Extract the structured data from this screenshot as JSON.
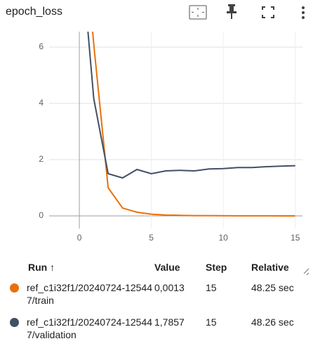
{
  "header": {
    "title": "epoch_loss"
  },
  "chart_data": {
    "type": "line",
    "x": [
      0,
      1,
      2,
      3,
      4,
      5,
      6,
      7,
      8,
      9,
      10,
      11,
      12,
      13,
      14,
      15
    ],
    "series": [
      {
        "name": "ref_c1i32f1/20240724-125447/train",
        "color": "#e8710a",
        "values": [
          12,
          6.1,
          1.0,
          0.28,
          0.13,
          0.06,
          0.03,
          0.02,
          0.01,
          0.008,
          0.006,
          0.004,
          0.003,
          0.002,
          0.0015,
          0.0013
        ]
      },
      {
        "name": "ref_c1i32f1/20240724-125447/validation",
        "color": "#425066",
        "values": [
          10.1,
          4.17,
          1.5,
          1.35,
          1.65,
          1.5,
          1.6,
          1.62,
          1.6,
          1.67,
          1.68,
          1.72,
          1.72,
          1.75,
          1.77,
          1.7857
        ]
      }
    ],
    "xlim": [
      -2.1,
      15.5
    ],
    "xticks": [
      0,
      5,
      10,
      15
    ],
    "ylim": [
      -0.45,
      6.55
    ],
    "yticks": [
      0,
      2,
      4,
      6
    ],
    "grid": true
  },
  "table": {
    "columns": [
      "Run ↑",
      "Value",
      "Step",
      "Relative"
    ],
    "rows": [
      [
        "ref_c1i32f1/20240724-125447/train",
        "0,0013",
        "15",
        "48.25 sec"
      ],
      [
        "ref_c1i32f1/20240724-125447/validation",
        "1,7857",
        "15",
        "48.26 sec"
      ]
    ]
  }
}
